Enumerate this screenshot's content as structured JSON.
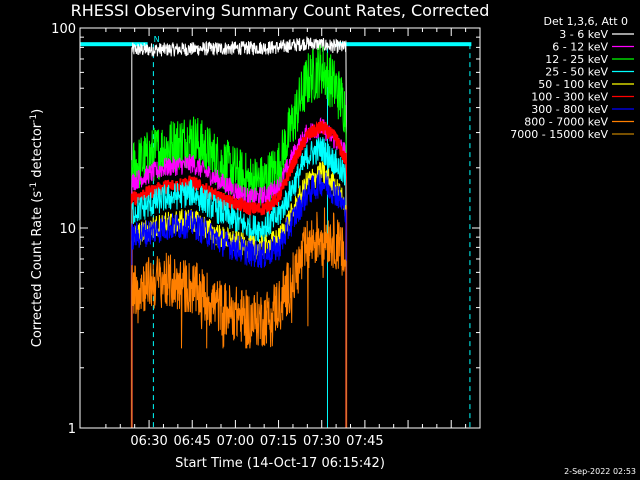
{
  "chart_data": {
    "type": "line",
    "title": "RHESSI Observing Summary Count Rates, Corrected",
    "xlabel": "Start Time (14-Oct-17 06:15:42)",
    "ylabel_prefix": "Corrected Count Rate (s",
    "ylabel_mid": " detector",
    "ylabel_suffix": ")",
    "ylabel_exp": "-1",
    "legend_title": "Det 1,3,6, Att 0",
    "legend_position": "top-right",
    "yscale": "log",
    "ylim": [
      1,
      100
    ],
    "xlim_minutes": [
      -9,
      130
    ],
    "x_ticks": [
      {
        "label": "06:30",
        "minutes": 15
      },
      {
        "label": "06:45",
        "minutes": 30
      },
      {
        "label": "07:00",
        "minutes": 45
      },
      {
        "label": "07:15",
        "minutes": 60
      },
      {
        "label": "07:30",
        "minutes": 75
      },
      {
        "label": "07:45",
        "minutes": 90
      }
    ],
    "y_ticks": [
      {
        "label": "1",
        "value": 1
      },
      {
        "label": "10",
        "value": 10
      },
      {
        "label": "100",
        "value": 100
      }
    ],
    "data_start_minutes": 9,
    "data_end_minutes": 83.5,
    "markers": {
      "cyan_bar_level": 83,
      "cyan_bar_ranges_minutes": [
        [
          -9,
          14.5
        ],
        [
          80,
          127
        ]
      ],
      "bar_label": "N",
      "solid_lines_minutes": [
        -9,
        77
      ],
      "dashed_lines_minutes": [
        16.5,
        126.5
      ]
    },
    "series": [
      {
        "name": "3 - 6 keV",
        "color": "#ffffff",
        "noise": 0.035,
        "floor": 0,
        "x": [
          9,
          20,
          40,
          60,
          70,
          76,
          83
        ],
        "y": [
          78,
          78,
          79,
          80,
          84,
          82,
          80
        ]
      },
      {
        "name": "6 - 12 keV",
        "color": "#ff00ff",
        "noise": 0.05,
        "floor": 0,
        "x": [
          9,
          20,
          30,
          40,
          50,
          55,
          60,
          65,
          70,
          75,
          80,
          83
        ],
        "y": [
          17,
          20,
          21,
          17,
          14,
          14.5,
          16,
          23,
          30,
          32,
          27,
          24
        ]
      },
      {
        "name": "12 - 25 keV",
        "color": "#00ff00",
        "noise": 0.14,
        "floor": 0,
        "x": [
          9,
          20,
          30,
          40,
          50,
          55,
          60,
          65,
          70,
          75,
          80,
          83
        ],
        "y": [
          20,
          25,
          28,
          21,
          17,
          17,
          20,
          34,
          55,
          63,
          50,
          40
        ]
      },
      {
        "name": "25 - 50 keV",
        "color": "#00ffff",
        "noise": 0.07,
        "floor": 0,
        "x": [
          9,
          20,
          30,
          40,
          50,
          55,
          60,
          65,
          70,
          75,
          80,
          83
        ],
        "y": [
          12,
          14,
          15,
          12,
          10,
          10,
          11.5,
          16,
          23,
          25,
          21,
          18
        ]
      },
      {
        "name": "50 - 100 keV",
        "color": "#ffff00",
        "noise": 0.06,
        "floor": 0,
        "x": [
          9,
          20,
          30,
          40,
          50,
          55,
          60,
          65,
          70,
          75,
          80,
          83
        ],
        "y": [
          9,
          10.5,
          11,
          9,
          8,
          8,
          8.8,
          12,
          17,
          19,
          16,
          13
        ]
      },
      {
        "name": "100 - 300 keV",
        "color": "#ff0000",
        "noise": 0.035,
        "floor": 0,
        "x": [
          9,
          20,
          30,
          40,
          50,
          55,
          60,
          65,
          70,
          75,
          80,
          83
        ],
        "y": [
          14,
          16,
          17,
          14,
          12.5,
          12.5,
          14,
          21,
          29,
          32,
          28,
          22
        ]
      },
      {
        "name": "300 - 800 keV",
        "color": "#0000ff",
        "noise": 0.07,
        "floor": 0,
        "x": [
          9,
          20,
          30,
          40,
          50,
          55,
          60,
          65,
          70,
          75,
          80,
          83
        ],
        "y": [
          9,
          10,
          10.5,
          8.5,
          7.5,
          7.3,
          8,
          11,
          15,
          17,
          15,
          12.5
        ]
      },
      {
        "name": "800 - 7000 keV",
        "color": "#ff7f00",
        "noise": 0.14,
        "floor": 2.5,
        "x": [
          9,
          20,
          30,
          40,
          50,
          55,
          60,
          65,
          70,
          75,
          80,
          83
        ],
        "y": [
          5,
          5.5,
          5,
          4,
          3.5,
          3.5,
          4.2,
          5.5,
          8,
          9.5,
          8.5,
          7
        ]
      },
      {
        "name": "7000 - 15000 keV",
        "color": "#bf7f00",
        "noise": 0,
        "floor": 0,
        "x": [],
        "y": []
      }
    ]
  },
  "footer": {
    "timestamp": "2-Sep-2022 02:53"
  }
}
